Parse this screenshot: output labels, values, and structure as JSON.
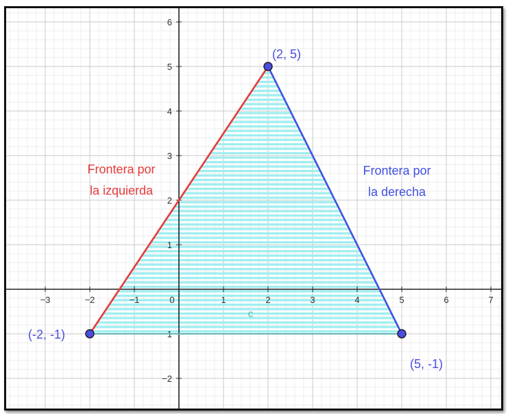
{
  "graph": {
    "x_ticks": [
      "−3",
      "−2",
      "−1",
      "0",
      "1",
      "2",
      "3",
      "4",
      "5",
      "6",
      "7"
    ],
    "y_ticks": [
      "6",
      "5",
      "4",
      "3",
      "2",
      "1",
      "−1",
      "−2"
    ],
    "vertices": [
      {
        "id": "A",
        "x": -2,
        "y": -1,
        "label": "(-2, -1)"
      },
      {
        "id": "B",
        "x": 2,
        "y": 5,
        "label": "(2, 5)"
      },
      {
        "id": "C",
        "x": 5,
        "y": -1,
        "label": "(5, -1)"
      }
    ],
    "edges": [
      {
        "from": "A",
        "to": "B",
        "color": "#e8393a"
      },
      {
        "from": "B",
        "to": "C",
        "color": "#3f51e0"
      },
      {
        "from": "A",
        "to": "C",
        "color": "#5fb3b3"
      }
    ],
    "fill": {
      "color": "#9eeef0",
      "style": "horizontal-stripes"
    },
    "segment_label": "c",
    "annotations": {
      "left_line1": "Frontera por",
      "left_line2": "la izquierda",
      "right_line1": "Frontera por",
      "right_line2": "la derecha"
    },
    "colors": {
      "grid_minor": "#ececec",
      "grid_major": "#c8c8c8",
      "axis": "#222222",
      "left_boundary": "#e8393a",
      "right_boundary": "#3f51e0",
      "vertex_fill": "#4a4ee0"
    }
  }
}
